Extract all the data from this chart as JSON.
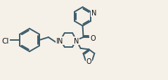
{
  "background_color": "#f5f0e8",
  "line_color": "#3a5a6a",
  "line_width": 1.4,
  "font_size": 7.0,
  "dbo": 0.007,
  "fig_w": 2.39,
  "fig_h": 1.15,
  "xlim": [
    0,
    2.39
  ],
  "ylim": [
    0,
    1.15
  ]
}
